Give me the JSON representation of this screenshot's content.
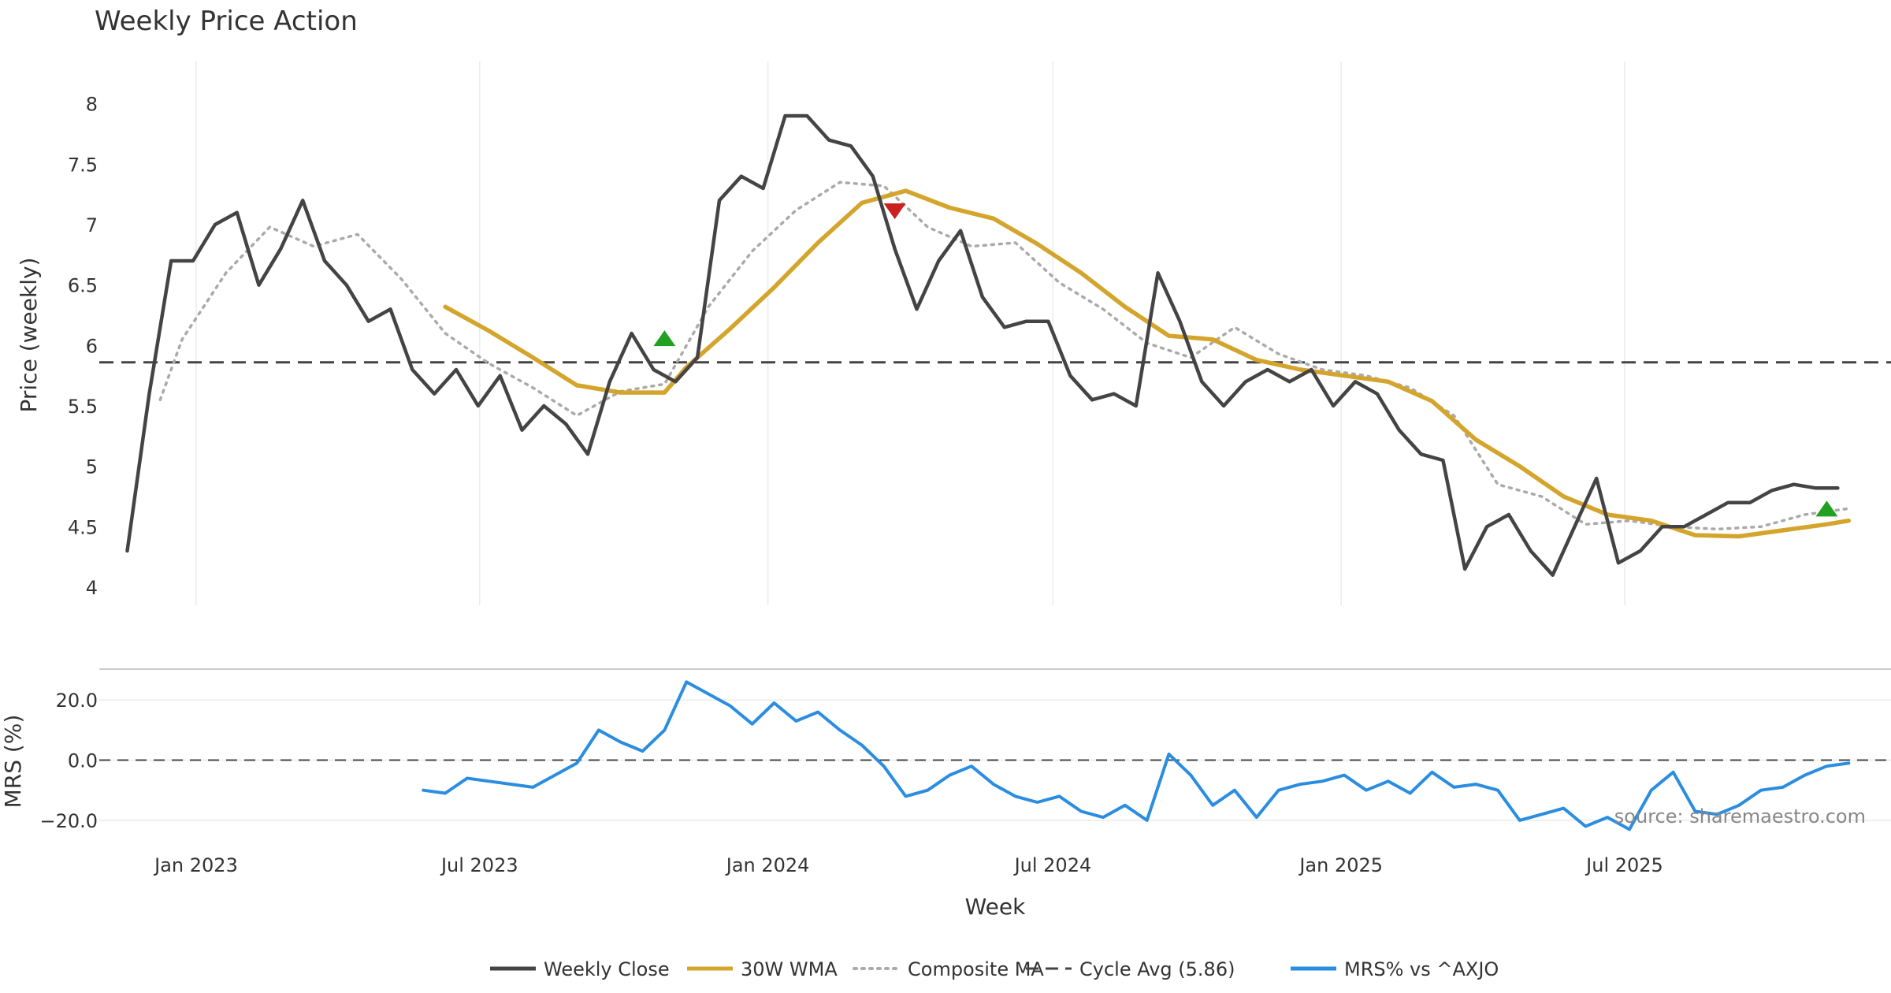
{
  "chart_data": {
    "type": "line",
    "title": "Weekly Price Action",
    "xlabel": "Week",
    "x_tick_labels": [
      "Jan 2023",
      "Jul 2023",
      "Jan 2024",
      "Jul 2024",
      "Jan 2025",
      "Jul 2025"
    ],
    "source": "source: sharemaestro.com",
    "price_panel": {
      "ylabel": "Price (weekly)",
      "ylim": [
        3.85,
        8.35
      ],
      "y_ticks": [
        4,
        4.5,
        5,
        5.5,
        6,
        6.5,
        7,
        7.5,
        8
      ],
      "y_tick_labels": [
        "4",
        "4.5",
        "5",
        "5.5",
        "6",
        "6.5",
        "7",
        "7.5",
        "8"
      ],
      "cycle_avg": 5.86,
      "series": [
        {
          "name": "Weekly Close",
          "color": "#444444",
          "style": "solid",
          "x": [
            "2022-11-18",
            "2022-12-02",
            "2022-12-16",
            "2022-12-30",
            "2023-01-13",
            "2023-01-27",
            "2023-02-10",
            "2023-02-24",
            "2023-03-10",
            "2023-03-24",
            "2023-04-07",
            "2023-04-21",
            "2023-05-05",
            "2023-05-19",
            "2023-06-02",
            "2023-06-16",
            "2023-06-30",
            "2023-07-14",
            "2023-07-28",
            "2023-08-11",
            "2023-08-25",
            "2023-09-08",
            "2023-09-22",
            "2023-10-06",
            "2023-10-20",
            "2023-11-03",
            "2023-11-17",
            "2023-12-01",
            "2023-12-15",
            "2023-12-29",
            "2024-01-12",
            "2024-01-26",
            "2024-02-09",
            "2024-02-23",
            "2024-03-08",
            "2024-03-22",
            "2024-04-05",
            "2024-04-19",
            "2024-05-03",
            "2024-05-17",
            "2024-05-31",
            "2024-06-14",
            "2024-06-28",
            "2024-07-12",
            "2024-07-26",
            "2024-08-09",
            "2024-08-23",
            "2024-09-06",
            "2024-09-20",
            "2024-10-04",
            "2024-10-18",
            "2024-11-01",
            "2024-11-15",
            "2024-11-29",
            "2024-12-13",
            "2024-12-27",
            "2025-01-10",
            "2025-01-24",
            "2025-02-07",
            "2025-02-21",
            "2025-03-07",
            "2025-03-21",
            "2025-04-04",
            "2025-04-18",
            "2025-05-02",
            "2025-05-16",
            "2025-05-30",
            "2025-06-13",
            "2025-06-27",
            "2025-07-11",
            "2025-07-25",
            "2025-08-08",
            "2025-08-22",
            "2025-09-05",
            "2025-09-19",
            "2025-10-03",
            "2025-10-17",
            "2025-10-31",
            "2025-11-14"
          ],
          "values": [
            4.3,
            5.6,
            6.7,
            6.7,
            7.0,
            7.1,
            6.5,
            6.8,
            7.2,
            6.7,
            6.5,
            6.2,
            6.3,
            5.8,
            5.6,
            5.8,
            5.5,
            5.75,
            5.3,
            5.5,
            5.35,
            5.1,
            5.7,
            6.1,
            5.8,
            5.7,
            5.9,
            7.2,
            7.4,
            7.3,
            7.9,
            7.9,
            7.7,
            7.65,
            7.4,
            6.8,
            6.3,
            6.7,
            6.95,
            6.4,
            6.15,
            6.2,
            6.2,
            5.75,
            5.55,
            5.6,
            5.5,
            6.6,
            6.2,
            5.7,
            5.5,
            5.7,
            5.8,
            5.7,
            5.8,
            5.5,
            5.7,
            5.6,
            5.3,
            5.1,
            5.05,
            4.15,
            4.5,
            4.6,
            4.3,
            4.1,
            4.5,
            4.9,
            4.2,
            4.3,
            4.5,
            4.5,
            4.6,
            4.7,
            4.7,
            4.8,
            4.85,
            4.82,
            4.82
          ]
        },
        {
          "name": "30W WMA",
          "color": "#d4a52c",
          "style": "solid",
          "x": [
            "2023-06-09",
            "2023-07-07",
            "2023-08-04",
            "2023-09-01",
            "2023-09-29",
            "2023-10-27",
            "2023-11-10",
            "2023-12-08",
            "2024-01-05",
            "2024-02-02",
            "2024-03-01",
            "2024-03-29",
            "2024-04-26",
            "2024-05-24",
            "2024-06-21",
            "2024-07-19",
            "2024-08-16",
            "2024-09-13",
            "2024-10-11",
            "2024-11-08",
            "2024-12-06",
            "2025-01-03",
            "2025-01-31",
            "2025-02-28",
            "2025-03-28",
            "2025-04-25",
            "2025-05-23",
            "2025-06-20",
            "2025-07-18",
            "2025-08-15",
            "2025-09-12",
            "2025-10-10",
            "2025-11-07",
            "2025-11-21"
          ],
          "values": [
            6.32,
            6.12,
            5.9,
            5.67,
            5.61,
            5.61,
            5.82,
            6.14,
            6.48,
            6.85,
            7.18,
            7.28,
            7.14,
            7.05,
            6.84,
            6.6,
            6.32,
            6.08,
            6.05,
            5.88,
            5.8,
            5.75,
            5.7,
            5.54,
            5.22,
            5.0,
            4.75,
            4.6,
            4.55,
            4.43,
            4.42,
            4.47,
            4.52,
            4.55
          ]
        },
        {
          "name": "Composite MA",
          "color": "#aaaaaa",
          "style": "dotted",
          "x": [
            "2022-12-09",
            "2022-12-23",
            "2023-01-20",
            "2023-02-17",
            "2023-03-17",
            "2023-04-14",
            "2023-05-12",
            "2023-06-09",
            "2023-07-07",
            "2023-08-04",
            "2023-09-01",
            "2023-09-29",
            "2023-10-27",
            "2023-11-24",
            "2023-12-22",
            "2024-01-19",
            "2024-02-16",
            "2024-03-15",
            "2024-04-12",
            "2024-05-10",
            "2024-06-07",
            "2024-07-05",
            "2024-08-02",
            "2024-08-30",
            "2024-09-27",
            "2024-10-25",
            "2024-11-22",
            "2024-12-20",
            "2025-01-17",
            "2025-02-14",
            "2025-03-14",
            "2025-04-11",
            "2025-05-09",
            "2025-06-06",
            "2025-07-04",
            "2025-08-01",
            "2025-08-29",
            "2025-09-26",
            "2025-10-24",
            "2025-11-21"
          ],
          "values": [
            5.55,
            6.05,
            6.6,
            6.98,
            6.82,
            6.92,
            6.55,
            6.1,
            5.85,
            5.65,
            5.42,
            5.62,
            5.68,
            6.32,
            6.78,
            7.12,
            7.35,
            7.32,
            6.98,
            6.82,
            6.85,
            6.52,
            6.3,
            6.02,
            5.9,
            6.15,
            5.93,
            5.8,
            5.75,
            5.65,
            5.42,
            4.85,
            4.75,
            4.52,
            4.55,
            4.5,
            4.48,
            4.5,
            4.6,
            4.65
          ]
        }
      ],
      "signals": [
        {
          "type": "buy",
          "x": "2023-10-27",
          "y": 6.05,
          "color": "#22a022"
        },
        {
          "type": "sell",
          "x": "2024-03-22",
          "y": 7.12,
          "color": "#cc1f1f"
        },
        {
          "type": "buy",
          "x": "2025-11-07",
          "y": 4.64,
          "color": "#22a022"
        }
      ]
    },
    "mrs_panel": {
      "ylabel": "MRS (%)",
      "ylim": [
        -25,
        30
      ],
      "y_ticks": [
        20,
        0,
        -20
      ],
      "y_tick_labels": [
        "20.0",
        "0.0",
        "−20.0"
      ],
      "zero_line": true,
      "series": [
        {
          "name": "MRS% vs ^AXJO",
          "color": "#2b8de0",
          "style": "solid",
          "x": [
            "2023-05-26",
            "2023-06-09",
            "2023-06-23",
            "2023-07-07",
            "2023-07-21",
            "2023-08-04",
            "2023-08-18",
            "2023-09-01",
            "2023-09-15",
            "2023-09-29",
            "2023-10-13",
            "2023-10-27",
            "2023-11-10",
            "2023-11-24",
            "2023-12-08",
            "2023-12-22",
            "2024-01-05",
            "2024-01-19",
            "2024-02-02",
            "2024-02-16",
            "2024-03-01",
            "2024-03-15",
            "2024-03-29",
            "2024-04-12",
            "2024-04-26",
            "2024-05-10",
            "2024-05-24",
            "2024-06-07",
            "2024-06-21",
            "2024-07-05",
            "2024-07-19",
            "2024-08-02",
            "2024-08-16",
            "2024-08-30",
            "2024-09-13",
            "2024-09-27",
            "2024-10-11",
            "2024-10-25",
            "2024-11-08",
            "2024-11-22",
            "2024-12-06",
            "2024-12-20",
            "2025-01-03",
            "2025-01-17",
            "2025-01-31",
            "2025-02-14",
            "2025-02-28",
            "2025-03-14",
            "2025-03-28",
            "2025-04-11",
            "2025-04-25",
            "2025-05-09",
            "2025-05-23",
            "2025-06-06",
            "2025-06-20",
            "2025-07-04",
            "2025-07-18",
            "2025-08-01",
            "2025-08-15",
            "2025-08-29",
            "2025-09-12",
            "2025-09-26",
            "2025-10-10",
            "2025-10-24",
            "2025-11-07",
            "2025-11-21"
          ],
          "values": [
            -10,
            -11,
            -6,
            -7,
            -8,
            -9,
            -5,
            -1,
            10,
            6,
            3,
            10,
            26,
            22,
            18,
            12,
            19,
            13,
            16,
            10,
            5,
            -2,
            -12,
            -10,
            -5,
            -2,
            -8,
            -12,
            -14,
            -12,
            -17,
            -19,
            -15,
            -20,
            2,
            -5,
            -15,
            -10,
            -19,
            -10,
            -8,
            -7,
            -5,
            -10,
            -7,
            -11,
            -4,
            -9,
            -8,
            -10,
            -20,
            -18,
            -16,
            -22,
            -19,
            -23,
            -10,
            -4,
            -17,
            -18,
            -15,
            -10,
            -9,
            -5,
            -2,
            -1
          ]
        }
      ]
    },
    "legend": {
      "placement": "bottom-center",
      "items": [
        "Weekly Close",
        "30W WMA",
        "Composite MA",
        "Cycle Avg (5.86)",
        "MRS% vs ^AXJO"
      ]
    }
  }
}
